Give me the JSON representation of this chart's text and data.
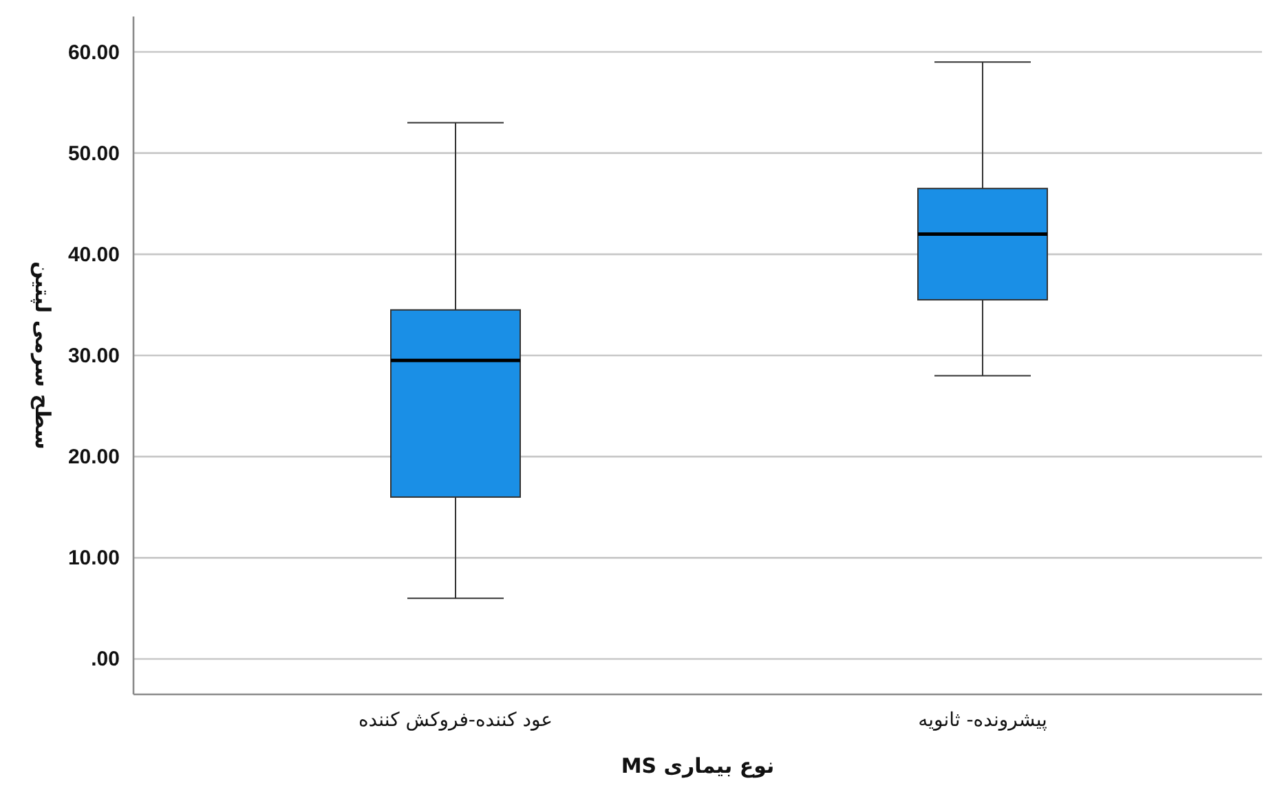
{
  "chart_data": {
    "type": "box",
    "xlabel": "نوع بیماری MS",
    "ylabel": "سطح سرمی لپتین",
    "categories": [
      "عود کننده-فروکش کننده",
      "پیشرونده- ثانویه"
    ],
    "boxes": [
      {
        "low": 6,
        "q1": 16,
        "median": 29.5,
        "q3": 34.5,
        "high": 53
      },
      {
        "low": 28,
        "q1": 35.5,
        "median": 42,
        "q3": 46.5,
        "high": 59
      }
    ],
    "color": "#1a8fe6",
    "ylim": [
      -3.5,
      63.5
    ],
    "yticks": [
      {
        "value": 0,
        "label": ".00"
      },
      {
        "value": 10,
        "label": "10.00"
      },
      {
        "value": 20,
        "label": "20.00"
      },
      {
        "value": 30,
        "label": "30.00"
      },
      {
        "value": 40,
        "label": "40.00"
      },
      {
        "value": 50,
        "label": "50.00"
      },
      {
        "value": 60,
        "label": "60.00"
      }
    ],
    "grid": "y"
  }
}
